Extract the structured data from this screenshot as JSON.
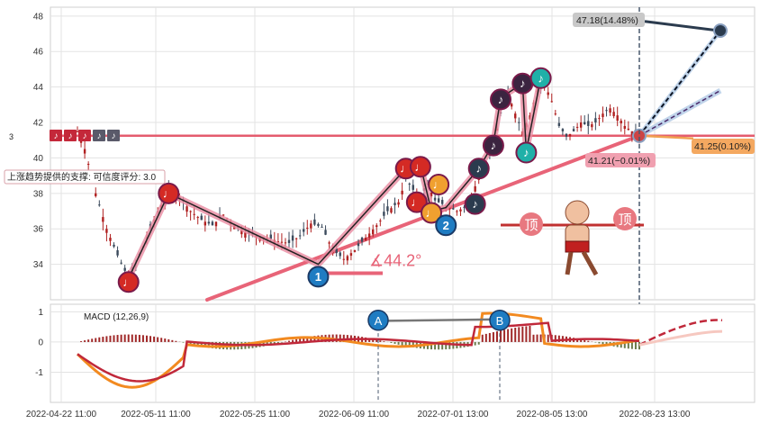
{
  "chart_data": [
    {
      "type": "candlestick",
      "panel": "price",
      "x_ticks": [
        "2022-04-22 11:00",
        "2022-05-11 11:00",
        "2022-05-25 11:00",
        "2022-06-09 11:00",
        "2022-07-01 13:00",
        "2022-08-05 13:00",
        "2022-08-23 13:00"
      ],
      "ylim": [
        32,
        48.5
      ],
      "y_ticks": [
        "34",
        "36",
        "38",
        "40",
        "42",
        "44",
        "46",
        "48"
      ],
      "grid": true,
      "price_path": [
        [
          0,
          41.5
        ],
        [
          2,
          40.5
        ],
        [
          5,
          38
        ],
        [
          8,
          36
        ],
        [
          11,
          34.5
        ],
        [
          14,
          33.2
        ],
        [
          16,
          34
        ],
        [
          19,
          35.5
        ],
        [
          22,
          37
        ],
        [
          25,
          38
        ],
        [
          28,
          37.8
        ],
        [
          31,
          37
        ],
        [
          34,
          36.5
        ],
        [
          37,
          36.2
        ],
        [
          40,
          36.8
        ],
        [
          43,
          36.2
        ],
        [
          46,
          35.8
        ],
        [
          49,
          35.6
        ],
        [
          52,
          35.5
        ],
        [
          55,
          35.3
        ],
        [
          58,
          35.2
        ],
        [
          61,
          35.6
        ],
        [
          64,
          36.3
        ],
        [
          67,
          36.1
        ],
        [
          70,
          34.8
        ],
        [
          73,
          34.3
        ],
        [
          76,
          34.8
        ],
        [
          79,
          35.5
        ],
        [
          82,
          36.2
        ],
        [
          85,
          37
        ],
        [
          88,
          37.5
        ],
        [
          90,
          38.8
        ],
        [
          92,
          38.2
        ],
        [
          94,
          37.8
        ],
        [
          96,
          38.5
        ],
        [
          98,
          37.6
        ],
        [
          100,
          37.4
        ],
        [
          102,
          37.2
        ],
        [
          104,
          37
        ],
        [
          106,
          37.2
        ],
        [
          108,
          37.8
        ],
        [
          110,
          39
        ],
        [
          112,
          39.8
        ],
        [
          114,
          40.8
        ],
        [
          116,
          42.5
        ],
        [
          118,
          43.6
        ],
        [
          120,
          42.5
        ],
        [
          122,
          41.5
        ],
        [
          124,
          42.4
        ],
        [
          126,
          43.8
        ],
        [
          128,
          44.2
        ],
        [
          130,
          43.2
        ],
        [
          132,
          41.8
        ],
        [
          134,
          41.2
        ],
        [
          136,
          41.5
        ],
        [
          138,
          42
        ],
        [
          140,
          41.8
        ],
        [
          142,
          42
        ],
        [
          144,
          42.5
        ],
        [
          146,
          42.8
        ],
        [
          148,
          42.4
        ],
        [
          150,
          41.8
        ],
        [
          152,
          41.5
        ],
        [
          154,
          41.25
        ]
      ],
      "bar_count": 155,
      "last_price": 41.25,
      "annotations": {
        "pct_box": "41.25(0.10%)",
        "target_box": "47.18(14.48%)",
        "low_box": "41.21(−0.01%)",
        "angle_text": "∡44.2°",
        "support_text": "上涨趋势提供的支撑: 可信度评分: 3.0",
        "top_text_1": "顶",
        "top_text_2": "顶",
        "level_line": 41.25
      },
      "markers": [
        {
          "bar": 14,
          "price": 33.0,
          "color": "#d42a24",
          "glyph": "♩"
        },
        {
          "bar": 25,
          "price": 38.0,
          "color": "#d42a24",
          "glyph": "♩"
        },
        {
          "bar": 90,
          "price": 39.4,
          "color": "#d42a24",
          "glyph": "♩"
        },
        {
          "bar": 94,
          "price": 39.5,
          "color": "#d42a24",
          "glyph": "♩"
        },
        {
          "bar": 93,
          "price": 37.5,
          "color": "#d42a24",
          "glyph": "♩"
        },
        {
          "bar": 99,
          "price": 38.5,
          "color": "#f0a030",
          "glyph": "♩"
        },
        {
          "bar": 97,
          "price": 36.9,
          "color": "#f0a030",
          "glyph": "♩"
        },
        {
          "bar": 66,
          "price": 33.3,
          "color": "#1f7cc2",
          "glyph": "1"
        },
        {
          "bar": 101,
          "price": 36.2,
          "color": "#1f7cc2",
          "glyph": "2"
        },
        {
          "bar": 110,
          "price": 39.4,
          "color": "#2b3b4e",
          "glyph": "♪"
        },
        {
          "bar": 109,
          "price": 37.4,
          "color": "#2b3b4e",
          "glyph": "♪"
        },
        {
          "bar": 114,
          "price": 40.7,
          "color": "#3b2440",
          "glyph": "♪"
        },
        {
          "bar": 116,
          "price": 43.3,
          "color": "#3b2440",
          "glyph": "♪"
        },
        {
          "bar": 122,
          "price": 44.2,
          "color": "#3b2440",
          "glyph": "♪"
        },
        {
          "bar": 123,
          "price": 40.3,
          "color": "#20b0a8",
          "glyph": "♪"
        },
        {
          "bar": 127,
          "price": 44.5,
          "color": "#20b0a8",
          "glyph": "♪"
        }
      ],
      "legend_icons": [
        "♪",
        "♪",
        "♪",
        "♪",
        "♪"
      ],
      "legend_label": "3"
    },
    {
      "type": "macd",
      "panel": "indicator",
      "title": "MACD (12,26,9)",
      "ylim": [
        -2,
        1.25
      ],
      "y_ticks": [
        "1",
        "0",
        "-1"
      ],
      "labels": [
        "A",
        "B"
      ],
      "grid": true
    }
  ],
  "colors": {
    "up": "#b02020",
    "down": "#3b4a5c",
    "level_line": "#e45c6e",
    "trend": "#e86478",
    "macd_dif": "#f28a20",
    "macd_dea": "#c0283a",
    "hist_pos": "#a02828",
    "hist_neg": "#6a7a4a"
  }
}
